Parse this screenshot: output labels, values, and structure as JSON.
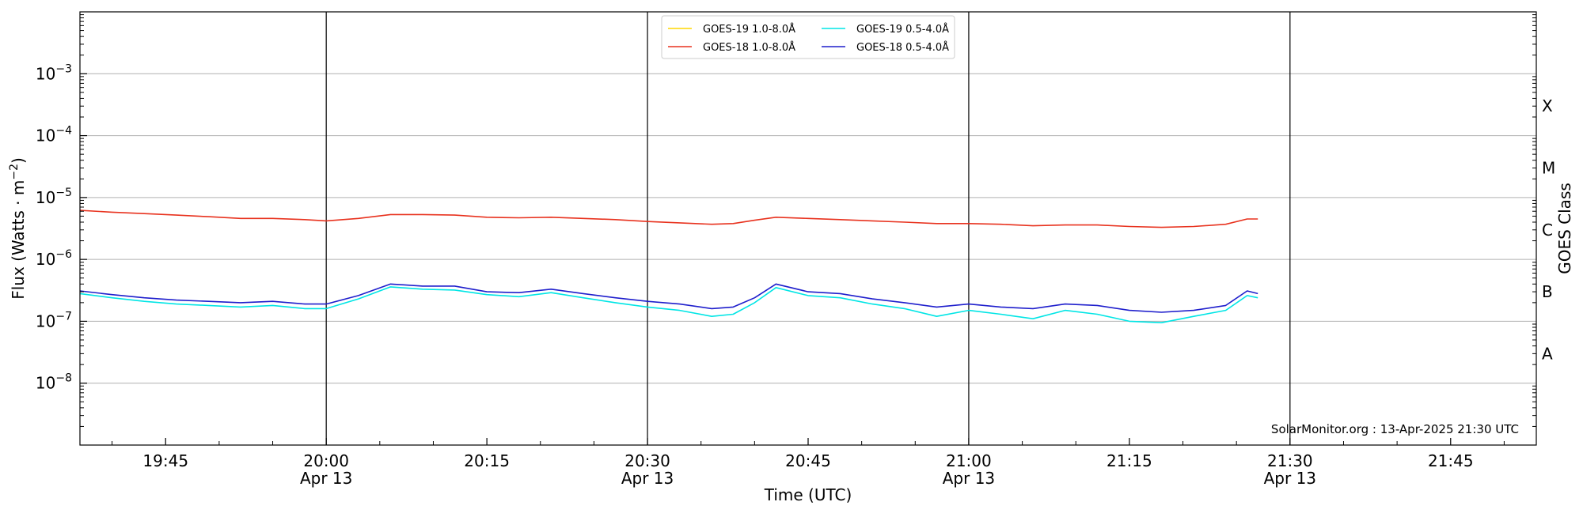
{
  "chart_data": {
    "type": "line",
    "ylabel_main": "Flux (Watts · m",
    "ylabel_exp": "−2",
    "ylabel_close": ")",
    "xlabel": "Time (UTC)",
    "right_ylabel": "GOES Class",
    "footer": "SolarMonitor.org : 13-Apr-2025 21:30 UTC",
    "y_scale": "log",
    "ylim": [
      "1e-9",
      "1e-2"
    ],
    "xlim": [
      "19:37",
      "21:53"
    ],
    "grid": "horizontal at decades",
    "legend_position": "top-center",
    "y_ticks": [
      {
        "exp": -8,
        "base": "10",
        "sup": "−8"
      },
      {
        "exp": -7,
        "base": "10",
        "sup": "−7"
      },
      {
        "exp": -6,
        "base": "10",
        "sup": "−6"
      },
      {
        "exp": -5,
        "base": "10",
        "sup": "−5"
      },
      {
        "exp": -4,
        "base": "10",
        "sup": "−4"
      },
      {
        "exp": -3,
        "base": "10",
        "sup": "−3"
      }
    ],
    "x_ticks": [
      {
        "t": "19:45",
        "label": "19:45",
        "date": ""
      },
      {
        "t": "20:00",
        "label": "20:00",
        "date": "Apr 13"
      },
      {
        "t": "20:15",
        "label": "20:15",
        "date": ""
      },
      {
        "t": "20:30",
        "label": "20:30",
        "date": "Apr 13"
      },
      {
        "t": "20:45",
        "label": "20:45",
        "date": ""
      },
      {
        "t": "21:00",
        "label": "21:00",
        "date": "Apr 13"
      },
      {
        "t": "21:15",
        "label": "21:15",
        "date": ""
      },
      {
        "t": "21:30",
        "label": "21:30",
        "date": "Apr 13"
      },
      {
        "t": "21:45",
        "label": "21:45",
        "date": ""
      }
    ],
    "vlines": [
      "20:00",
      "20:30",
      "21:00",
      "21:30"
    ],
    "goes_classes": [
      {
        "label": "X",
        "level": "3e-4"
      },
      {
        "label": "M",
        "level": "3e-5"
      },
      {
        "label": "C",
        "level": "3e-6"
      },
      {
        "label": "B",
        "level": "3e-7"
      },
      {
        "label": "A",
        "level": "3e-8"
      }
    ],
    "series": [
      {
        "name": "GOES-19 1.0-8.0Å",
        "color": "#FFD700",
        "points": []
      },
      {
        "name": "GOES-18 1.0-8.0Å",
        "color": "#E8321E",
        "points": [
          [
            "19:37",
            "6.2e-6"
          ],
          [
            "19:40",
            "5.8e-6"
          ],
          [
            "19:43",
            "5.5e-6"
          ],
          [
            "19:46",
            "5.2e-6"
          ],
          [
            "19:49",
            "4.9e-6"
          ],
          [
            "19:52",
            "4.6e-6"
          ],
          [
            "19:55",
            "4.6e-6"
          ],
          [
            "19:58",
            "4.4e-6"
          ],
          [
            "20:00",
            "4.2e-6"
          ],
          [
            "20:03",
            "4.6e-6"
          ],
          [
            "20:06",
            "5.3e-6"
          ],
          [
            "20:09",
            "5.3e-6"
          ],
          [
            "20:12",
            "5.2e-6"
          ],
          [
            "20:15",
            "4.8e-6"
          ],
          [
            "20:18",
            "4.7e-6"
          ],
          [
            "20:21",
            "4.8e-6"
          ],
          [
            "20:24",
            "4.6e-6"
          ],
          [
            "20:27",
            "4.4e-6"
          ],
          [
            "20:30",
            "4.1e-6"
          ],
          [
            "20:33",
            "3.9e-6"
          ],
          [
            "20:36",
            "3.7e-6"
          ],
          [
            "20:38",
            "3.8e-6"
          ],
          [
            "20:40",
            "4.3e-6"
          ],
          [
            "20:42",
            "4.8e-6"
          ],
          [
            "20:45",
            "4.6e-6"
          ],
          [
            "20:48",
            "4.4e-6"
          ],
          [
            "20:51",
            "4.2e-6"
          ],
          [
            "20:54",
            "4.0e-6"
          ],
          [
            "20:57",
            "3.8e-6"
          ],
          [
            "21:00",
            "3.8e-6"
          ],
          [
            "21:03",
            "3.7e-6"
          ],
          [
            "21:06",
            "3.5e-6"
          ],
          [
            "21:09",
            "3.6e-6"
          ],
          [
            "21:12",
            "3.6e-6"
          ],
          [
            "21:15",
            "3.4e-6"
          ],
          [
            "21:18",
            "3.3e-6"
          ],
          [
            "21:21",
            "3.4e-6"
          ],
          [
            "21:24",
            "3.7e-6"
          ],
          [
            "21:26",
            "4.5e-6"
          ],
          [
            "21:27",
            "4.5e-6"
          ]
        ]
      },
      {
        "name": "GOES-19 0.5-4.0Å",
        "color": "#00E5E5",
        "points": [
          [
            "19:37",
            "2.8e-7"
          ],
          [
            "19:40",
            "2.4e-7"
          ],
          [
            "19:43",
            "2.1e-7"
          ],
          [
            "19:46",
            "1.9e-7"
          ],
          [
            "19:49",
            "1.8e-7"
          ],
          [
            "19:52",
            "1.7e-7"
          ],
          [
            "19:55",
            "1.8e-7"
          ],
          [
            "19:58",
            "1.6e-7"
          ],
          [
            "20:00",
            "1.6e-7"
          ],
          [
            "20:03",
            "2.3e-7"
          ],
          [
            "20:06",
            "3.6e-7"
          ],
          [
            "20:09",
            "3.3e-7"
          ],
          [
            "20:12",
            "3.2e-7"
          ],
          [
            "20:15",
            "2.7e-7"
          ],
          [
            "20:18",
            "2.5e-7"
          ],
          [
            "20:21",
            "2.9e-7"
          ],
          [
            "20:24",
            "2.4e-7"
          ],
          [
            "20:27",
            "2.0e-7"
          ],
          [
            "20:30",
            "1.7e-7"
          ],
          [
            "20:33",
            "1.5e-7"
          ],
          [
            "20:36",
            "1.2e-7"
          ],
          [
            "20:38",
            "1.3e-7"
          ],
          [
            "20:40",
            "2.0e-7"
          ],
          [
            "20:42",
            "3.5e-7"
          ],
          [
            "20:45",
            "2.6e-7"
          ],
          [
            "20:48",
            "2.4e-7"
          ],
          [
            "20:51",
            "1.9e-7"
          ],
          [
            "20:54",
            "1.6e-7"
          ],
          [
            "20:57",
            "1.2e-7"
          ],
          [
            "21:00",
            "1.5e-7"
          ],
          [
            "21:03",
            "1.3e-7"
          ],
          [
            "21:06",
            "1.1e-7"
          ],
          [
            "21:09",
            "1.5e-7"
          ],
          [
            "21:12",
            "1.3e-7"
          ],
          [
            "21:15",
            "1.0e-7"
          ],
          [
            "21:18",
            "0.95e-7"
          ],
          [
            "21:21",
            "1.2e-7"
          ],
          [
            "21:24",
            "1.5e-7"
          ],
          [
            "21:26",
            "2.6e-7"
          ],
          [
            "21:27",
            "2.4e-7"
          ]
        ]
      },
      {
        "name": "GOES-18 0.5-4.0Å",
        "color": "#1E1ECC",
        "points": [
          [
            "19:37",
            "3.1e-7"
          ],
          [
            "19:40",
            "2.7e-7"
          ],
          [
            "19:43",
            "2.4e-7"
          ],
          [
            "19:46",
            "2.2e-7"
          ],
          [
            "19:49",
            "2.1e-7"
          ],
          [
            "19:52",
            "2.0e-7"
          ],
          [
            "19:55",
            "2.1e-7"
          ],
          [
            "19:58",
            "1.9e-7"
          ],
          [
            "20:00",
            "1.9e-7"
          ],
          [
            "20:03",
            "2.6e-7"
          ],
          [
            "20:06",
            "4.0e-7"
          ],
          [
            "20:09",
            "3.7e-7"
          ],
          [
            "20:12",
            "3.7e-7"
          ],
          [
            "20:15",
            "3.0e-7"
          ],
          [
            "20:18",
            "2.9e-7"
          ],
          [
            "20:21",
            "3.3e-7"
          ],
          [
            "20:24",
            "2.8e-7"
          ],
          [
            "20:27",
            "2.4e-7"
          ],
          [
            "20:30",
            "2.1e-7"
          ],
          [
            "20:33",
            "1.9e-7"
          ],
          [
            "20:36",
            "1.6e-7"
          ],
          [
            "20:38",
            "1.7e-7"
          ],
          [
            "20:40",
            "2.4e-7"
          ],
          [
            "20:42",
            "4.0e-7"
          ],
          [
            "20:45",
            "3.0e-7"
          ],
          [
            "20:48",
            "2.8e-7"
          ],
          [
            "20:51",
            "2.3e-7"
          ],
          [
            "20:54",
            "2.0e-7"
          ],
          [
            "20:57",
            "1.7e-7"
          ],
          [
            "21:00",
            "1.9e-7"
          ],
          [
            "21:03",
            "1.7e-7"
          ],
          [
            "21:06",
            "1.6e-7"
          ],
          [
            "21:09",
            "1.9e-7"
          ],
          [
            "21:12",
            "1.8e-7"
          ],
          [
            "21:15",
            "1.5e-7"
          ],
          [
            "21:18",
            "1.4e-7"
          ],
          [
            "21:21",
            "1.5e-7"
          ],
          [
            "21:24",
            "1.8e-7"
          ],
          [
            "21:26",
            "3.1e-7"
          ],
          [
            "21:27",
            "2.8e-7"
          ]
        ]
      }
    ]
  }
}
